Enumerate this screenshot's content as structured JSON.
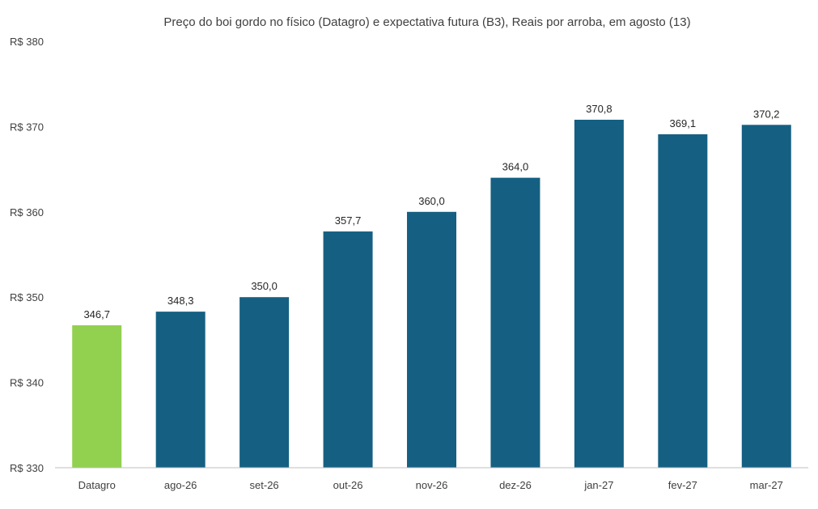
{
  "chart_data": {
    "type": "bar",
    "title": "Preço do boi gordo no físico (Datagro)  e expectativa futura (B3), Reais por arroba, em agosto (13)",
    "xlabel": "",
    "ylabel": "",
    "categories": [
      "Datagro",
      "ago-26",
      "set-26",
      "out-26",
      "nov-26",
      "dez-26",
      "jan-27",
      "fev-27",
      "mar-27"
    ],
    "values": [
      346.7,
      348.3,
      350.0,
      357.7,
      360.0,
      364.0,
      370.8,
      369.1,
      370.2
    ],
    "data_labels": [
      "346,7",
      "348,3",
      "350,0",
      "357,7",
      "360,0",
      "364,0",
      "370,8",
      "369,1",
      "370,2"
    ],
    "ylim": [
      330,
      380
    ],
    "yticks": [
      330,
      340,
      350,
      360,
      370,
      380
    ],
    "ytick_labels": [
      "R$ 330",
      "R$ 340",
      "R$ 350",
      "R$ 360",
      "R$ 370",
      "R$ 380"
    ],
    "grid": false,
    "legend": "none",
    "colors": {
      "highlight": "#92d050",
      "bars": "#156082",
      "axis": "#bfbfbf"
    },
    "highlight_index": 0
  }
}
